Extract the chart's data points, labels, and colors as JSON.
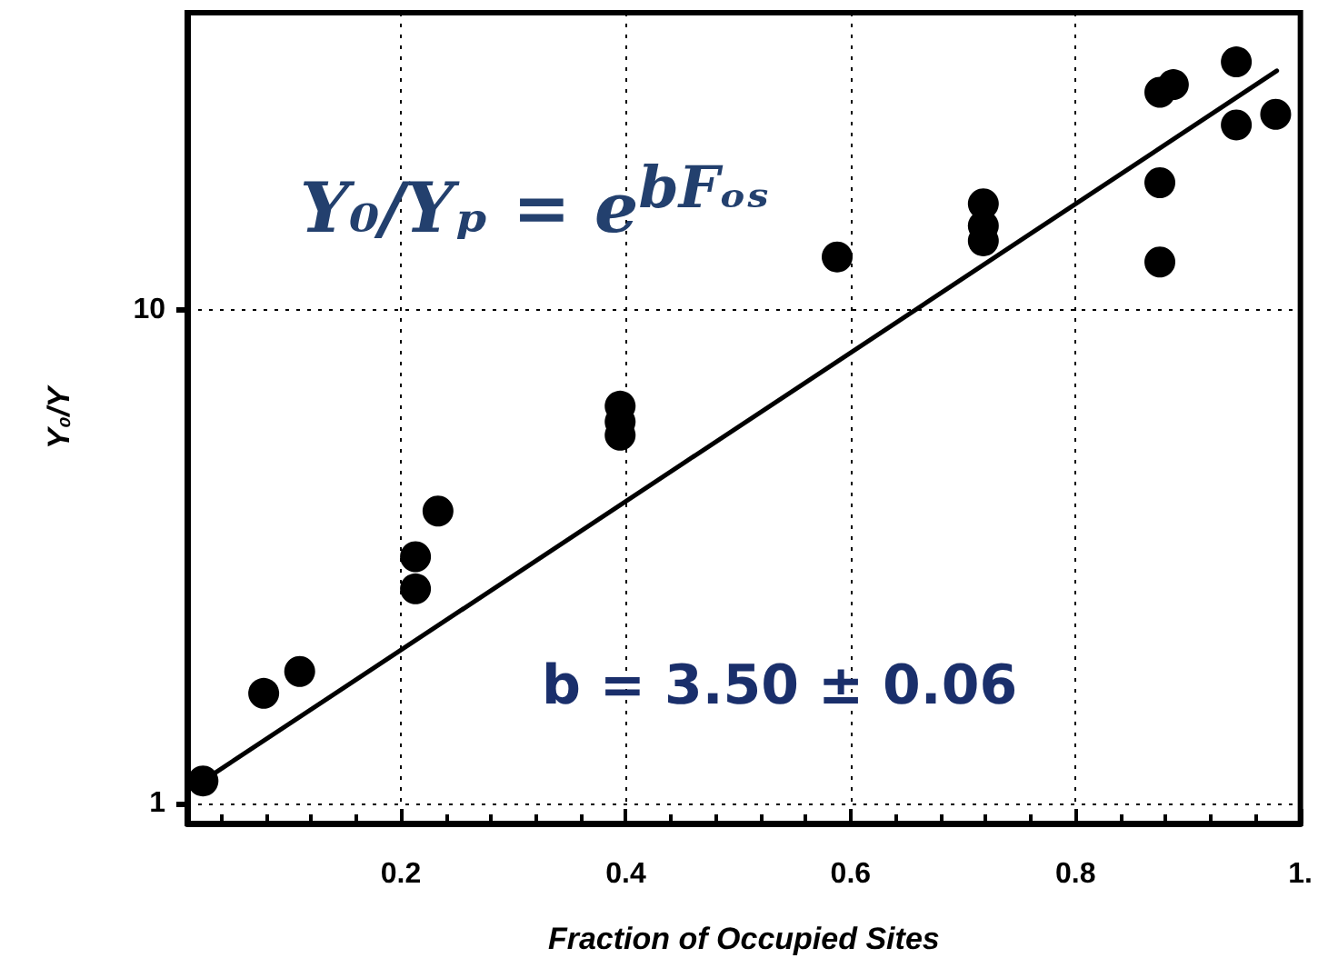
{
  "chart_data": {
    "type": "scatter",
    "xlabel": "Fraction of Occupied Sites",
    "ylabel": "Y₀/Y",
    "annotations": [
      "Y₀/Yₚ = e$^{bFₒₛ}$",
      "b = 3.50 ± 0.06"
    ],
    "log": "y",
    "grid": true,
    "marker": "circle",
    "xlim": [
      0.01,
      1.0
    ],
    "xticks": [
      {
        "value": 0.04,
        "label": null
      },
      {
        "value": 0.08,
        "label": null
      },
      {
        "value": 0.12,
        "label": null
      },
      {
        "value": 0.16,
        "label": null
      },
      0.2,
      {
        "value": 0.24,
        "label": null
      },
      {
        "value": 0.28,
        "label": null
      },
      {
        "value": 0.32,
        "label": null
      },
      {
        "value": 0.36,
        "label": null
      },
      0.4,
      {
        "value": 0.44,
        "label": null
      },
      {
        "value": 0.48,
        "label": null
      },
      {
        "value": 0.52,
        "label": null
      },
      {
        "value": 0.56,
        "label": null
      },
      0.6,
      {
        "value": 0.64,
        "label": null
      },
      {
        "value": 0.68,
        "label": null
      },
      {
        "value": 0.72,
        "label": null
      },
      {
        "value": 0.76,
        "label": null
      },
      0.8,
      {
        "value": 0.84,
        "label": null
      },
      {
        "value": 0.88,
        "label": null
      },
      {
        "value": 0.92,
        "label": null
      },
      {
        "value": 0.96,
        "label": null
      },
      {
        "value": 1.0,
        "label": "1."
      }
    ],
    "ylim": [
      0.91,
      40
    ],
    "yticks": [
      1,
      10
    ],
    "series": [
      {
        "color": "#000000",
        "x": [
          0.024,
          0.078,
          0.11,
          0.213,
          0.213,
          0.233,
          0.395,
          0.395,
          0.395,
          0.588,
          0.718,
          0.718,
          0.718,
          0.875,
          0.887,
          0.875,
          0.875,
          0.943,
          0.943,
          0.978
        ],
        "values": [
          1.11,
          1.67,
          1.85,
          3.16,
          2.72,
          3.91,
          6.38,
          5.93,
          5.57,
          12.8,
          16.4,
          14.8,
          13.8,
          27.6,
          28.6,
          18.1,
          12.5,
          31.8,
          23.7,
          24.9
        ]
      },
      {
        "type": "line",
        "color": "#000000",
        "marker": "none",
        "x": [
          0.024,
          0.979
        ],
        "values": [
          1.11,
          30.5
        ]
      }
    ]
  }
}
